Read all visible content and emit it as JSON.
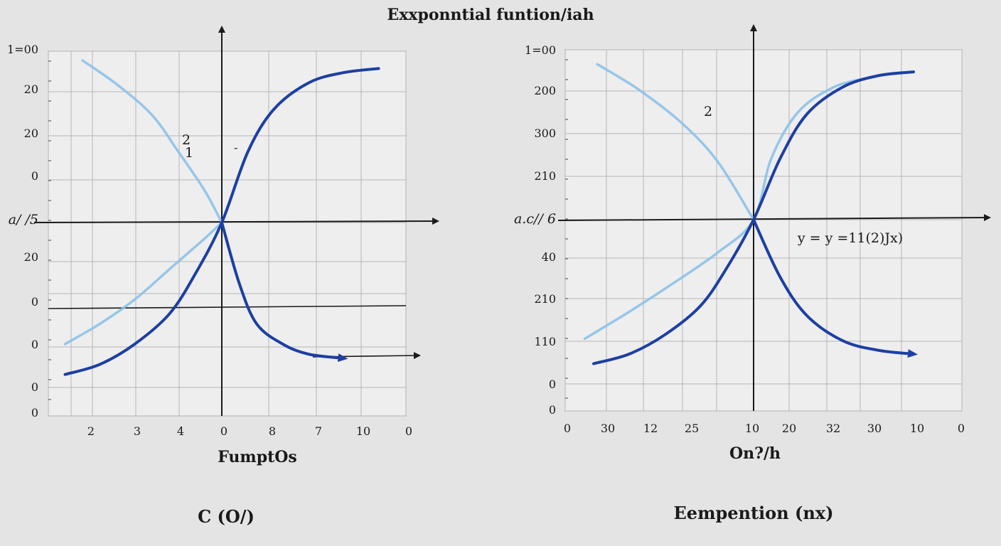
{
  "title": "Exxponntial funtion/iah",
  "colors": {
    "dark_curve": "#1d3fa3",
    "light_curve": "#8cc1e8",
    "grid": "#b5b5b5",
    "axis": "#1a1a1a"
  },
  "chart_data": [
    {
      "type": "line",
      "name": "left",
      "xlabel": "FumptOs",
      "caption": "C (O/)",
      "ylabel_tick": "a/ /5",
      "ytick_labels": [
        "1=00",
        "20",
        "20",
        "0",
        "a/ /5",
        "20",
        "0",
        "0",
        "0",
        "0"
      ],
      "xtick_labels": [
        "2",
        "3",
        "4",
        "0",
        "8",
        "7",
        "10",
        "0"
      ],
      "annotations": [
        "2",
        "1"
      ],
      "series": [
        {
          "name": "light-decreasing",
          "color": "light",
          "x": [
            -8.0,
            -6.0,
            -4.0,
            -2.5,
            -1.0,
            0.0
          ],
          "y": [
            8.0,
            6.8,
            5.3,
            3.5,
            1.6,
            0.0
          ]
        },
        {
          "name": "light-increasing",
          "color": "light",
          "x": [
            -9.0,
            -7.0,
            -5.0,
            -3.0,
            -1.0,
            0.0
          ],
          "y": [
            -6.0,
            -5.0,
            -3.8,
            -2.3,
            -0.8,
            0.0
          ]
        },
        {
          "name": "dark-rising",
          "color": "dark",
          "x": [
            -9.0,
            -7.0,
            -5.0,
            -3.0,
            -1.5,
            0.0,
            1.5,
            3.0,
            5.0,
            7.0,
            9.0
          ],
          "y": [
            -7.5,
            -7.0,
            -6.0,
            -4.5,
            -2.5,
            0.0,
            3.5,
            5.6,
            6.9,
            7.4,
            7.6
          ],
          "arrow": false
        },
        {
          "name": "dark-falling",
          "color": "dark",
          "x": [
            0.0,
            1.0,
            2.0,
            3.5,
            5.0,
            7.0
          ],
          "y": [
            0.0,
            -3.0,
            -5.0,
            -6.0,
            -6.5,
            -6.7
          ],
          "arrow": true
        }
      ]
    },
    {
      "type": "line",
      "name": "right",
      "xlabel": "On?/h",
      "caption": "Eempention (nx)",
      "ylabel_tick": "a.c// 6",
      "ytick_labels": [
        "1=00",
        "200",
        "300",
        "210",
        "a.c// 6",
        "40",
        "210",
        "110",
        "0",
        "0"
      ],
      "xtick_labels": [
        "0",
        "30",
        "12",
        "25",
        "10",
        "20",
        "32",
        "30",
        "10",
        "0"
      ],
      "annotations": [
        "2",
        "y = y =11(2)Jx)"
      ],
      "series": [
        {
          "name": "light-decreasing",
          "color": "light",
          "x": [
            -8.8,
            -6.5,
            -4.0,
            -2.0,
            0.0
          ],
          "y": [
            8.1,
            6.8,
            5.0,
            3.0,
            0.0
          ]
        },
        {
          "name": "light-increasing",
          "color": "light",
          "x": [
            -9.5,
            -7.0,
            -4.5,
            -2.0,
            0.0,
            1.0,
            2.5,
            4.5,
            6.5
          ],
          "y": [
            -6.2,
            -4.8,
            -3.3,
            -1.7,
            0.0,
            3.2,
            5.6,
            6.9,
            7.4
          ]
        },
        {
          "name": "dark-rising",
          "color": "dark",
          "x": [
            -9.0,
            -7.0,
            -5.0,
            -3.0,
            -1.5,
            0.0,
            1.5,
            3.0,
            5.0,
            7.0,
            9.0
          ],
          "y": [
            -7.5,
            -7.0,
            -6.0,
            -4.5,
            -2.5,
            0.0,
            3.2,
            5.5,
            6.9,
            7.5,
            7.7
          ],
          "arrow": false
        },
        {
          "name": "dark-falling",
          "color": "dark",
          "x": [
            0.0,
            1.5,
            3.0,
            5.0,
            7.0,
            9.0
          ],
          "y": [
            0.0,
            -3.0,
            -5.0,
            -6.3,
            -6.8,
            -7.0
          ],
          "arrow": true
        }
      ]
    }
  ]
}
